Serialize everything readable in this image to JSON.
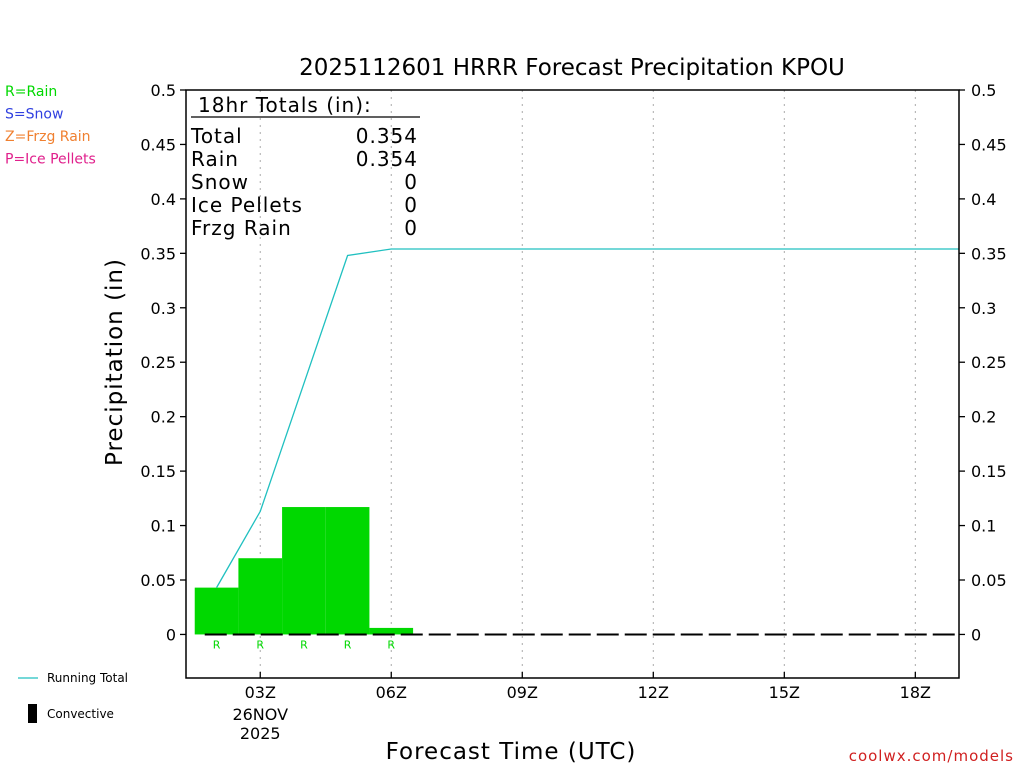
{
  "chart_data": {
    "type": "bar",
    "title": "2025112601 HRRR Forecast Precipitation KPOU",
    "ylabel": "Precipitation (in)",
    "xlabel": "Forecast Time (UTC)",
    "ylim": [
      -0.04,
      0.5
    ],
    "xlim_hours": [
      1.3,
      19.0
    ],
    "y_ticks": [
      "0.5",
      "0.45",
      "0.4",
      "0.35",
      "0.3",
      "0.25",
      "0.2",
      "0.15",
      "0.1",
      "0.05",
      "0"
    ],
    "x_ticks": [
      {
        "hour": 3,
        "label": "03Z",
        "sub1": "26NOV",
        "sub2": "2025"
      },
      {
        "hour": 6,
        "label": "06Z"
      },
      {
        "hour": 9,
        "label": "09Z"
      },
      {
        "hour": 12,
        "label": "12Z"
      },
      {
        "hour": 15,
        "label": "15Z"
      },
      {
        "hour": 18,
        "label": "18Z"
      }
    ],
    "bars": [
      {
        "start": 1.5,
        "end": 2.5,
        "value": 0.043,
        "type": "R"
      },
      {
        "start": 2.5,
        "end": 3.5,
        "value": 0.07,
        "type": "R"
      },
      {
        "start": 3.5,
        "end": 4.5,
        "value": 0.117,
        "type": "R"
      },
      {
        "start": 4.5,
        "end": 5.5,
        "value": 0.117,
        "type": "R"
      },
      {
        "start": 5.5,
        "end": 6.5,
        "value": 0.006,
        "type": "R"
      }
    ],
    "precip_type_markers": [
      {
        "hour": 2,
        "label": "R"
      },
      {
        "hour": 3,
        "label": "R"
      },
      {
        "hour": 4,
        "label": "R"
      },
      {
        "hour": 5,
        "label": "R"
      },
      {
        "hour": 6,
        "label": "R"
      }
    ],
    "running_total": {
      "name": "Running Total",
      "x": [
        2,
        3,
        5,
        6,
        19
      ],
      "y": [
        0.043,
        0.113,
        0.348,
        0.354,
        0.354
      ]
    },
    "convective_hours": [],
    "grid": "vertical dotted at tick hours",
    "colors": {
      "rain": "#00d800",
      "running_total": "#20c0c0",
      "axis": "#000000"
    }
  },
  "totals_box": {
    "heading": "18hr Totals (in):",
    "rows": [
      {
        "label": "Total",
        "value": "0.354"
      },
      {
        "label": "Rain",
        "value": "0.354"
      },
      {
        "label": "Snow",
        "value": "0"
      },
      {
        "label": "Ice Pellets",
        "value": "0"
      },
      {
        "label": "Frzg Rain",
        "value": "0"
      }
    ]
  },
  "type_legend": [
    {
      "text": "R=Rain",
      "color": "#00d800"
    },
    {
      "text": "S=Snow",
      "color": "#3040e0"
    },
    {
      "text": "Z=Frzg Rain",
      "color": "#f08030"
    },
    {
      "text": "P=Ice Pellets",
      "color": "#e0208c"
    }
  ],
  "bottom_legend": {
    "running_total": "Running Total",
    "convective": "Convective"
  },
  "credit": {
    "text": "coolwx.com/models",
    "color": "#d02020"
  }
}
